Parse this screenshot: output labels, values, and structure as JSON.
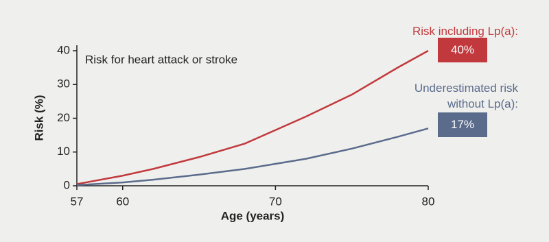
{
  "chart_data": {
    "type": "line",
    "annotation": "Risk for heart attack or stroke",
    "x_label": "Age (years)",
    "y_label": "Risk (%)",
    "x": [
      57,
      60,
      62,
      65,
      68,
      70,
      72,
      75,
      78,
      80
    ],
    "series": [
      {
        "name": "Risk including Lp(a):",
        "color": "#c1393c",
        "values": [
          0.5,
          3,
          5,
          8.5,
          12.5,
          16.5,
          20.5,
          27,
          35,
          40
        ],
        "value_labels": [
          null,
          null,
          null,
          null,
          null,
          null,
          null,
          null,
          null,
          "40%"
        ]
      },
      {
        "name": "Underestimated risk without Lp(a):",
        "color": "#5a6b8c",
        "values": [
          0.2,
          1,
          1.8,
          3.3,
          5,
          6.5,
          8,
          11,
          14.5,
          17
        ],
        "value_labels": [
          null,
          null,
          null,
          null,
          null,
          null,
          null,
          null,
          null,
          "17%"
        ]
      }
    ],
    "xlim": [
      57,
      80
    ],
    "xticks": [
      57,
      60,
      70,
      80
    ],
    "ylim": [
      0,
      40
    ],
    "yticks": [
      0,
      10,
      20,
      30,
      40
    ]
  }
}
